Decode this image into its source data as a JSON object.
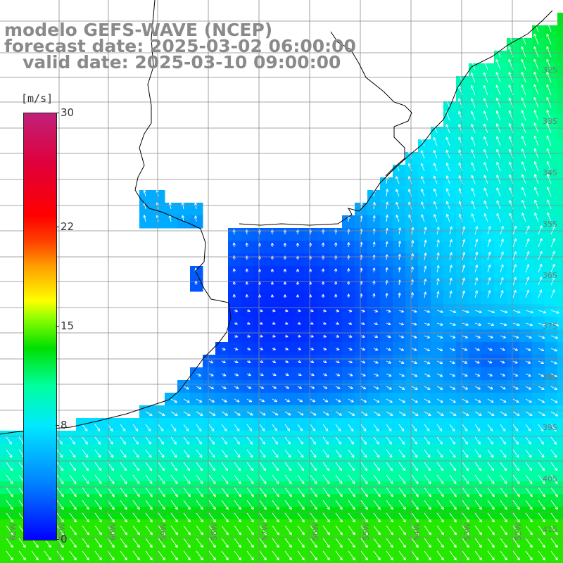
{
  "title": {
    "line1": "modelo GEFS-WAVE (NCEP)",
    "line2": "forecast date: 2025-03-02 06:00:00",
    "line3": "   valid date: 2025-03-10 09:00:00"
  },
  "colorbar": {
    "unit": "[m/s]",
    "ticks": [
      {
        "label": "30",
        "value": 30
      },
      {
        "label": "22",
        "value": 22
      },
      {
        "label": "15",
        "value": 15
      },
      {
        "label": "8",
        "value": 8
      },
      {
        "label": "0",
        "value": 0
      }
    ],
    "vmin": 0,
    "vmax": 30
  },
  "lat_labels": [
    "32S",
    "33S",
    "34S",
    "35S",
    "36S",
    "37S",
    "38S",
    "39S",
    "40S",
    "41S"
  ],
  "lon_labels": [
    "62W",
    "61W",
    "60W",
    "59W",
    "58W",
    "57W",
    "56W",
    "55W",
    "54W",
    "53W",
    "52W"
  ],
  "map": {
    "lon_range": [
      -62.5,
      -51.5
    ],
    "lat_range": [
      -41.5,
      -30.5
    ],
    "land_color": "#ffffff",
    "coast_color": "#000000",
    "grid_color": "#888888",
    "arrow_color": "#ffffff"
  }
}
